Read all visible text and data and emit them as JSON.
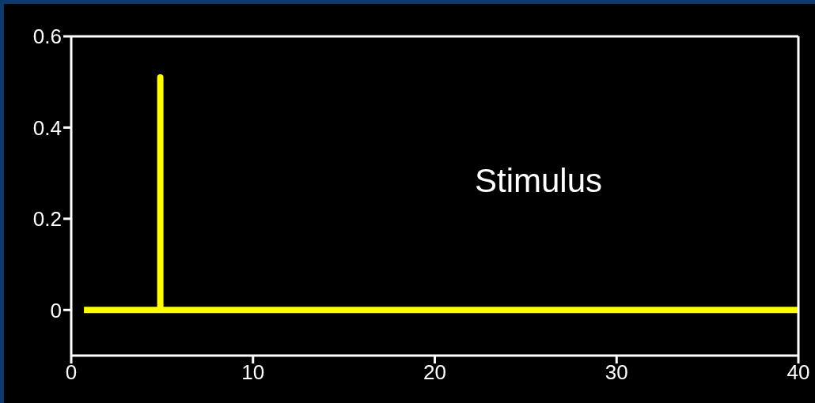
{
  "chart_data": {
    "type": "line",
    "series": [
      {
        "color": "#ffff00",
        "x": [
          0.7,
          4.9,
          4.9,
          4.9,
          40
        ],
        "values": [
          0,
          0,
          0.51,
          0,
          0
        ]
      }
    ],
    "xlim": [
      0,
      40
    ],
    "xticks": [
      0,
      10,
      20,
      30,
      40
    ],
    "ylim": [
      -0.1,
      0.6
    ],
    "yticks": [
      0,
      0.2,
      0.4,
      0.6
    ],
    "annotations": [
      "Stimulus"
    ],
    "grid": false,
    "legend": false,
    "marker": "none",
    "line_style": "solid"
  }
}
